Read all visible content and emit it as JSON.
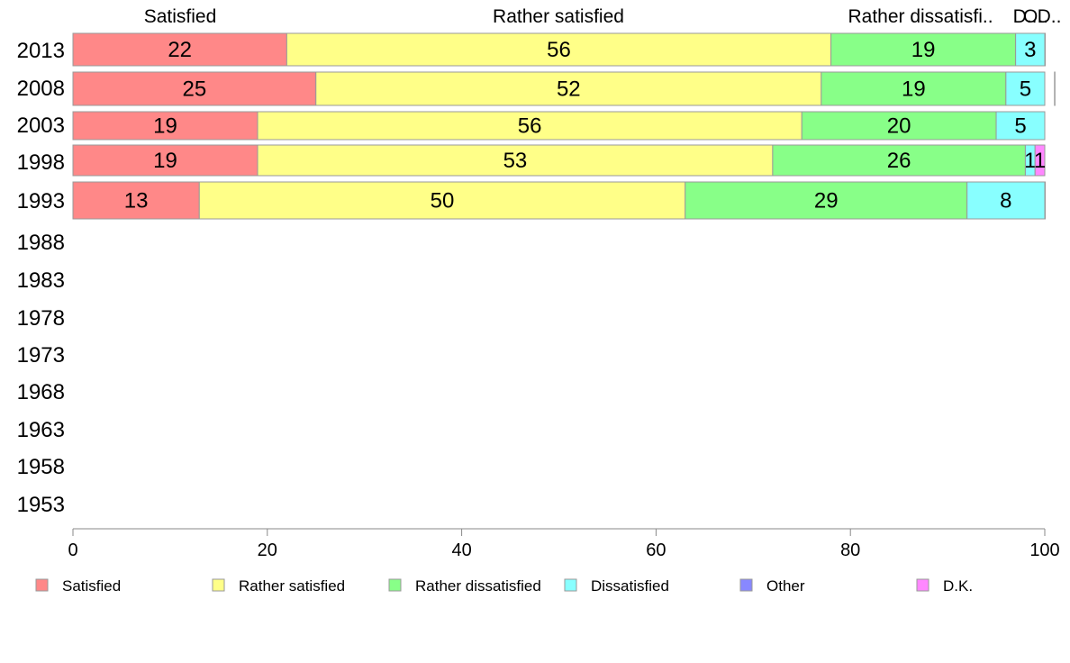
{
  "chart_data": {
    "type": "bar",
    "orientation": "horizontal",
    "stacked": true,
    "categories": [
      "2013",
      "2008",
      "2003",
      "1998",
      "1993",
      "1988",
      "1983",
      "1978",
      "1973",
      "1968",
      "1963",
      "1958",
      "1953"
    ],
    "series": [
      {
        "name": "Satisfied",
        "color": "#ff8888",
        "values": [
          22,
          25,
          19,
          19,
          13,
          null,
          null,
          null,
          null,
          null,
          null,
          null,
          null
        ]
      },
      {
        "name": "Rather satisfied",
        "color": "#ffff88",
        "values": [
          56,
          52,
          56,
          53,
          50,
          null,
          null,
          null,
          null,
          null,
          null,
          null,
          null
        ]
      },
      {
        "name": "Rather dissatisfied",
        "color": "#88ff88",
        "values": [
          19,
          19,
          20,
          26,
          29,
          null,
          null,
          null,
          null,
          null,
          null,
          null,
          null
        ]
      },
      {
        "name": "Dissatisfied",
        "color": "#88ffff",
        "values": [
          3,
          5,
          5,
          1,
          8,
          null,
          null,
          null,
          null,
          null,
          null,
          null,
          null
        ]
      },
      {
        "name": "Other",
        "color": "#8888ff",
        "values": [
          0,
          0,
          0,
          0,
          0,
          null,
          null,
          null,
          null,
          null,
          null,
          null,
          null
        ]
      },
      {
        "name": "D.K.",
        "color": "#ff88ff",
        "values": [
          0.4,
          0.4,
          0,
          1,
          0.3,
          null,
          null,
          null,
          null,
          null,
          null,
          null,
          null
        ]
      }
    ],
    "top_labels": [
      "Satisfied",
      "Rather satisfied",
      "Rather dissatisfi..",
      "D..",
      "O..",
      "D.."
    ],
    "xlim": [
      0,
      100
    ],
    "xticks": [
      0,
      20,
      40,
      60,
      80,
      100
    ],
    "title": "",
    "xlabel": "",
    "ylabel": "",
    "grid": false,
    "legend_position": "bottom"
  }
}
